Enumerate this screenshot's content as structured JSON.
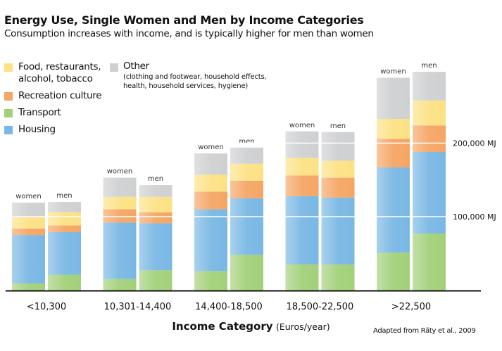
{
  "chart_data": {
    "type": "bar",
    "stacked": true,
    "title": "Energy Use, Single Women and Men by Income Categories",
    "subtitle": "Consumption increases with income, and is typically higher for men than women",
    "xlabel": "Income Category",
    "xlabel_unit": "(Euros/year)",
    "categories": [
      "<10,300",
      "10,301-14,400",
      "14,400-18,500",
      "18,500-22,500",
      ">22,500"
    ],
    "groups": [
      "women",
      "men"
    ],
    "y_unit": "MJ",
    "ylim": [
      0,
      310000
    ],
    "y_ticks": [
      {
        "value": 100000,
        "label": "100,000 MJ"
      },
      {
        "value": 200000,
        "label": "200,000 MJ"
      }
    ],
    "grid": "horizontal white lines across bars",
    "legend_placement": "top-left",
    "series": [
      {
        "name": "Transport",
        "color": "#a3d17a",
        "values": {
          "women": [
            9000,
            15000,
            26000,
            35000,
            51000
          ],
          "men": [
            21000,
            27000,
            48000,
            35000,
            77000
          ]
        }
      },
      {
        "name": "Housing",
        "color": "#7ab8e4",
        "values": {
          "women": [
            66000,
            77000,
            84000,
            93000,
            116000
          ],
          "men": [
            58000,
            64000,
            77000,
            91000,
            111000
          ]
        }
      },
      {
        "name": "Recreation culture",
        "color": "#f5a665",
        "values": {
          "women": [
            9000,
            18000,
            24000,
            28000,
            39000
          ],
          "men": [
            9000,
            15000,
            24000,
            27000,
            36000
          ]
        }
      },
      {
        "name": "Food, restaurants, alcohol, tobacco",
        "color": "#fce285",
        "values": {
          "women": [
            15000,
            17000,
            23000,
            24000,
            27000
          ],
          "men": [
            18000,
            21000,
            23000,
            23000,
            34000
          ]
        }
      },
      {
        "name": "Other",
        "color": "#cfd0d2",
        "values": {
          "women": [
            20000,
            26000,
            29000,
            36000,
            56000
          ],
          "men": [
            14000,
            16000,
            22000,
            39000,
            39000
          ]
        }
      }
    ],
    "legend": [
      {
        "label_line1": "Food, restaurants,",
        "label_line2": "alcohol, tobacco",
        "color": "#fce285"
      },
      {
        "label_line1": "Recreation culture",
        "color": "#f5a665"
      },
      {
        "label_line1": "Transport",
        "color": "#a3d17a"
      },
      {
        "label_line1": "Housing",
        "color": "#7ab8e4"
      },
      {
        "label_line1": "Other",
        "note_line1": "(clothing and footwear, household effects,",
        "note_line2": "health, household services, hygiene)",
        "color": "#cfd0d2"
      }
    ],
    "source": "Adapted from Räty et al., 2009"
  }
}
